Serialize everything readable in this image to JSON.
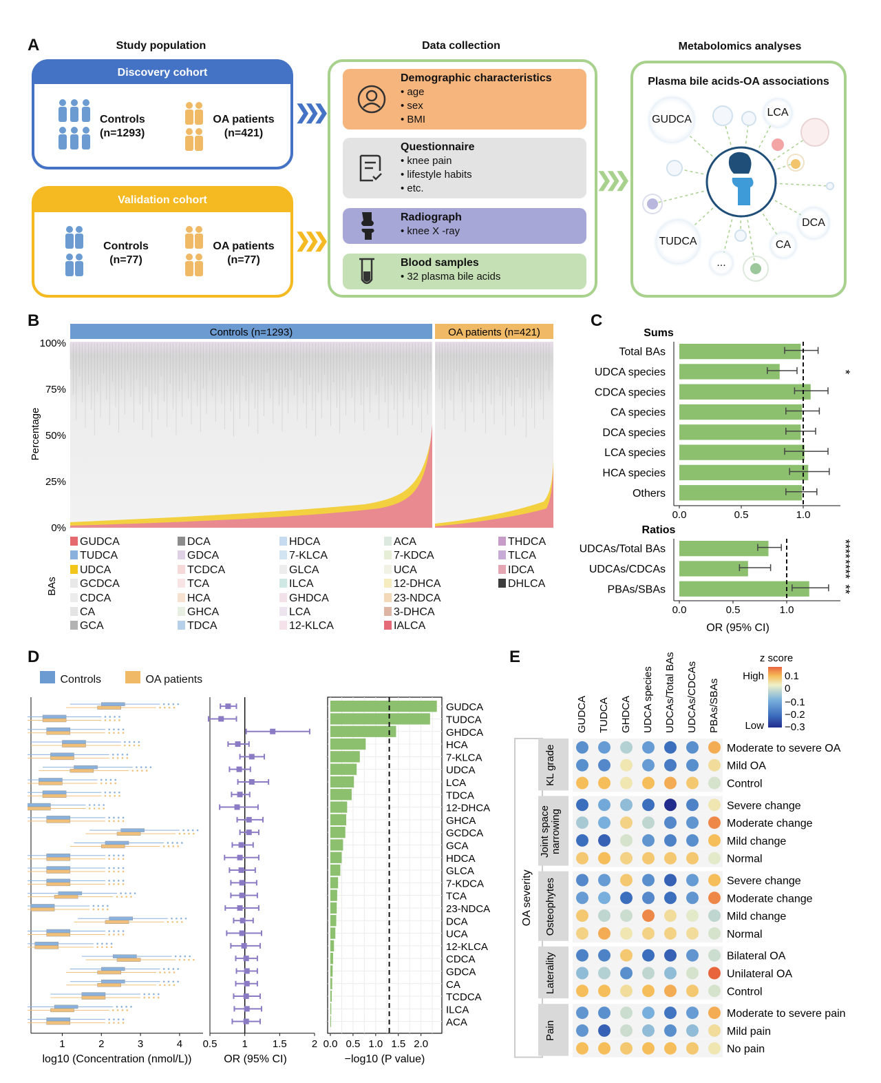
{
  "panel_letters": {
    "a": "A",
    "b": "B",
    "c": "C",
    "d": "D",
    "e": "E"
  },
  "panelA": {
    "headers": {
      "study": "Study population",
      "data": "Data collection",
      "metab": "Metabolomics analyses"
    },
    "discovery": {
      "title": "Discovery cohort",
      "controls": "Controls",
      "controls_n": "(n=1293)",
      "oa": "OA patients",
      "oa_n": "(n=421)",
      "color": "#4472c4"
    },
    "validation": {
      "title": "Validation cohort",
      "controls": "Controls",
      "controls_n": "(n=77)",
      "oa": "OA patients",
      "oa_n": "(n=77)",
      "color": "#f5b921"
    },
    "cards": [
      {
        "title": "Demographic characteristics",
        "items": [
          "age",
          "sex",
          "BMI"
        ],
        "color": "#f7b57e",
        "icon": "person-circle-icon"
      },
      {
        "title": "Questionnaire",
        "items": [
          "knee pain",
          "lifestyle habits",
          "etc."
        ],
        "color": "#e3e3e3",
        "icon": "clipboard-icon"
      },
      {
        "title": "Radiograph",
        "items": [
          "knee X -ray"
        ],
        "color": "#a6a7d6",
        "icon": "knee-joint-icon"
      },
      {
        "title": "Blood samples",
        "items": [
          "32 plasma bile acids"
        ],
        "color": "#c5e0b4",
        "icon": "test-tube-icon"
      }
    ],
    "metab_title": "Plasma bile  acids-OA associations",
    "bubbles": [
      "GUDCA",
      "LCA",
      "TUDCA",
      "DCA",
      "CA",
      "..."
    ]
  },
  "panelB": {
    "controls_label": "Controls (n=1293)",
    "oa_label": "OA patients (n=421)",
    "ylabel": "Percentage",
    "yticks": [
      "100%",
      "75%",
      "50%",
      "25%",
      "0%"
    ],
    "legend_title": "BAs",
    "legend": [
      [
        "GUDCA",
        "#e46a6f"
      ],
      [
        "TUDCA",
        "#8ab0dc"
      ],
      [
        "UDCA",
        "#f3c61c"
      ],
      [
        "GCDCA",
        "#e8e8e8"
      ],
      [
        "CDCA",
        "#ececec"
      ],
      [
        "CA",
        "#e4e4e4"
      ],
      [
        "GCA",
        "#b3b3b3"
      ],
      [
        "DCA",
        "#8c8c8c"
      ],
      [
        "GDCA",
        "#e0d0e6"
      ],
      [
        "TCDCA",
        "#f6dada"
      ],
      [
        "TCA",
        "#f8e4e4"
      ],
      [
        "HCA",
        "#f7e2d2"
      ],
      [
        "GHCA",
        "#e7efe2"
      ],
      [
        "TDCA",
        "#b6d0ea"
      ],
      [
        "HDCA",
        "#c6daf0"
      ],
      [
        "7-KLCA",
        "#d2e3f1"
      ],
      [
        "GLCA",
        "#ededed"
      ],
      [
        "ILCA",
        "#cfe8e4"
      ],
      [
        "GHDCA",
        "#f3e1ea"
      ],
      [
        "LCA",
        "#ece4ee"
      ],
      [
        "12-KLCA",
        "#f5e1ea"
      ],
      [
        "ACA",
        "#dce9de"
      ],
      [
        "7-KDCA",
        "#e6eed6"
      ],
      [
        "UCA",
        "#f2f2e4"
      ],
      [
        "12-DHCA",
        "#f5ecc0"
      ],
      [
        "23-NDCA",
        "#f4d9b8"
      ],
      [
        "3-DHCA",
        "#dcb5a5"
      ],
      [
        "IALCA",
        "#e46a78"
      ],
      [
        "THDCA",
        "#c89cc8"
      ],
      [
        "TLCA",
        "#c8aad6"
      ],
      [
        "IDCA",
        "#e3a6b2"
      ],
      [
        "DHLCA",
        "#3c3c3c"
      ]
    ]
  },
  "chart_data": [
    {
      "type": "bar",
      "id": "C-sums",
      "title": "Sums",
      "categories": [
        "Total BAs",
        "UDCA species",
        "CDCA species",
        "CA species",
        "DCA species",
        "LCA species",
        "HCA species",
        "Others"
      ],
      "values": [
        0.98,
        0.81,
        1.06,
        0.99,
        0.98,
        1.01,
        1.04,
        0.99
      ],
      "ci_low": [
        0.85,
        0.71,
        0.93,
        0.86,
        0.86,
        0.85,
        0.89,
        0.86
      ],
      "ci_high": [
        1.12,
        0.95,
        1.2,
        1.13,
        1.1,
        1.2,
        1.21,
        1.11
      ],
      "stars": [
        "",
        "*",
        "",
        "",
        "",
        "",
        "",
        ""
      ],
      "xticks": [
        0.0,
        0.5,
        1.0
      ],
      "xlim": [
        0,
        1.3
      ],
      "ref_line": 1.0
    },
    {
      "type": "bar",
      "id": "C-ratios",
      "title": "Ratios",
      "categories": [
        "UDCAs/Total BAs",
        "UDCAs/CDCAs",
        "PBAs/SBAs"
      ],
      "values": [
        0.83,
        0.64,
        1.21
      ],
      "ci_low": [
        0.73,
        0.56,
        1.05
      ],
      "ci_high": [
        0.95,
        0.85,
        1.39
      ],
      "stars": [
        "****",
        "****",
        "**"
      ],
      "xticks": [
        0.0,
        0.5,
        1.0
      ],
      "xlim": [
        0,
        1.5
      ],
      "ref_line": 1.0,
      "xlabel": "OR (95% CI)"
    },
    {
      "type": "bar",
      "id": "D-pvalue",
      "categories": [
        "GUDCA",
        "TUDCA",
        "GHDCA",
        "HCA",
        "7-KLCA",
        "UDCA",
        "LCA",
        "TDCA",
        "12-DHCA",
        "GHCA",
        "GCDCA",
        "GCA",
        "HDCA",
        "GLCA",
        "7-KDCA",
        "TCA",
        "23-NDCA",
        "DCA",
        "UCA",
        "12-KLCA",
        "CDCA",
        "GDCA",
        "CA",
        "TCDCA",
        "ILCA",
        "ACA"
      ],
      "values": [
        2.35,
        2.2,
        1.45,
        0.78,
        0.65,
        0.58,
        0.52,
        0.47,
        0.37,
        0.35,
        0.33,
        0.28,
        0.25,
        0.22,
        0.17,
        0.15,
        0.14,
        0.13,
        0.11,
        0.08,
        0.06,
        0.05,
        0.04,
        0.03,
        0.02,
        0.01
      ],
      "xticks": [
        0.0,
        0.5,
        1.0,
        1.5,
        2.0
      ],
      "xlim": [
        0,
        2.4
      ],
      "ref_line": 1.3,
      "xlabel": "−log10 (P value)"
    },
    {
      "type": "scatter",
      "id": "D-or",
      "categories": [
        "GUDCA",
        "TUDCA",
        "GHDCA",
        "HCA",
        "7-KLCA",
        "UDCA",
        "LCA",
        "TDCA",
        "12-DHCA",
        "GHCA",
        "GCDCA",
        "GCA",
        "HDCA",
        "GLCA",
        "7-KDCA",
        "TCA",
        "23-NDCA",
        "DCA",
        "UCA",
        "12-KLCA",
        "CDCA",
        "GDCA",
        "CA",
        "TCDCA",
        "ILCA",
        "ACA"
      ],
      "values": [
        0.76,
        0.66,
        1.4,
        0.9,
        1.1,
        0.92,
        1.1,
        0.93,
        0.89,
        1.06,
        1.06,
        0.95,
        0.93,
        0.95,
        0.96,
        0.96,
        0.93,
        0.97,
        0.96,
        0.99,
        1.02,
        1.03,
        1.03,
        1.02,
        1.03,
        1.02
      ],
      "ci_low": [
        0.65,
        0.48,
        1.02,
        0.76,
        0.93,
        0.78,
        0.9,
        0.81,
        0.64,
        0.89,
        0.93,
        0.82,
        0.71,
        0.78,
        0.8,
        0.8,
        0.72,
        0.84,
        0.74,
        0.8,
        0.87,
        0.88,
        0.87,
        0.84,
        0.85,
        0.82
      ],
      "ci_high": [
        0.88,
        0.88,
        1.93,
        1.06,
        1.28,
        1.08,
        1.34,
        1.07,
        1.19,
        1.26,
        1.2,
        1.12,
        1.2,
        1.15,
        1.17,
        1.18,
        1.2,
        1.12,
        1.24,
        1.22,
        1.18,
        1.18,
        1.18,
        1.22,
        1.24,
        1.22
      ],
      "xticks": [
        0.5,
        1,
        1.5,
        2
      ],
      "xlim": [
        0.5,
        2.0
      ],
      "ref_line": 1.0,
      "xlabel": "OR (95% CI)"
    },
    {
      "type": "boxplot",
      "id": "D-conc",
      "categories": [
        "GUDCA",
        "TUDCA",
        "GHDCA",
        "HCA",
        "7-KLCA",
        "UDCA",
        "LCA",
        "TDCA",
        "12-DHCA",
        "GHCA",
        "GCDCA",
        "GCA",
        "HDCA",
        "GLCA",
        "7-KDCA",
        "TCA",
        "23-NDCA",
        "DCA",
        "UCA",
        "12-KLCA",
        "CDCA",
        "GDCA",
        "CA",
        "TCDCA",
        "ILCA",
        "ACA"
      ],
      "controls_median": [
        2.3,
        0.8,
        0.9,
        1.3,
        1.0,
        1.6,
        0.7,
        0.8,
        0.4,
        0.9,
        2.8,
        2.4,
        0.9,
        0.9,
        0.9,
        1.2,
        0.5,
        2.5,
        0.9,
        0.6,
        2.6,
        2.3,
        2.3,
        1.8,
        1.1,
        0.9
      ],
      "oa_median": [
        2.2,
        0.8,
        0.9,
        1.3,
        1.0,
        1.5,
        0.7,
        0.8,
        0.4,
        0.9,
        2.7,
        2.3,
        0.9,
        0.9,
        0.9,
        1.1,
        0.5,
        2.4,
        0.9,
        0.6,
        2.7,
        2.2,
        2.2,
        1.8,
        1.0,
        0.9
      ],
      "xticks": [
        1,
        2,
        3,
        4
      ],
      "xlim": [
        0.2,
        4.6
      ],
      "xlabel": "log10 (Concentration (nmol/L))"
    },
    {
      "type": "heatmap",
      "id": "E",
      "columns": [
        "GUDCA",
        "TUDCA",
        "GHDCA",
        "UDCA species",
        "UDCAs/Total BAs",
        "UDCAs/CDCAs",
        "PBAs/SBAs"
      ],
      "groups": [
        {
          "name": "KL grade",
          "rows": [
            "Moderate to severe OA",
            "Mild OA",
            "Control"
          ]
        },
        {
          "name": "Joint space narrowing",
          "rows": [
            "Severe change",
            "Moderate change",
            "Mild change",
            "Normal"
          ]
        },
        {
          "name": "Osteophytes",
          "rows": [
            "Severe change",
            "Moderate change",
            "Mild change",
            "Normal"
          ]
        },
        {
          "name": "Laterality",
          "rows": [
            "Bilateral OA",
            "Unilateral OA",
            "Control"
          ]
        },
        {
          "name": "Pain",
          "rows": [
            "Moderate to severe pain",
            "Mild pain",
            "No pain"
          ]
        }
      ],
      "values": [
        [
          -0.15,
          -0.13,
          -0.05,
          -0.13,
          -0.2,
          -0.15,
          0.06
        ],
        [
          -0.15,
          -0.16,
          0.01,
          -0.13,
          -0.18,
          -0.15,
          0.02
        ],
        [
          0.05,
          0.05,
          0.01,
          0.05,
          0.06,
          0.04,
          -0.02
        ],
        [
          -0.2,
          -0.11,
          -0.08,
          -0.2,
          -0.3,
          -0.17,
          0.01
        ],
        [
          -0.06,
          -0.1,
          0.03,
          -0.04,
          -0.16,
          -0.14,
          0.08
        ],
        [
          -0.2,
          -0.22,
          -0.02,
          -0.14,
          -0.17,
          -0.15,
          0.05
        ],
        [
          0.04,
          0.05,
          0.03,
          0.04,
          0.04,
          0.04,
          -0.01
        ],
        [
          -0.16,
          -0.13,
          0.04,
          -0.15,
          -0.22,
          -0.13,
          0.05
        ],
        [
          -0.13,
          -0.1,
          -0.2,
          -0.16,
          -0.2,
          -0.14,
          0.08
        ],
        [
          0.04,
          -0.04,
          -0.03,
          0.08,
          0.02,
          -0.01,
          -0.04
        ],
        [
          0.03,
          0.06,
          0.01,
          0.03,
          0.03,
          0.02,
          -0.02
        ],
        [
          -0.17,
          -0.17,
          0.04,
          -0.2,
          -0.22,
          -0.14,
          -0.03
        ],
        [
          -0.08,
          -0.05,
          -0.15,
          -0.04,
          -0.08,
          -0.02,
          0.1
        ],
        [
          0.05,
          0.05,
          0.02,
          0.05,
          0.06,
          0.04,
          -0.02
        ],
        [
          -0.14,
          -0.15,
          -0.03,
          -0.1,
          -0.19,
          -0.13,
          0.06
        ],
        [
          -0.14,
          -0.22,
          -0.03,
          -0.08,
          -0.15,
          -0.08,
          0.02
        ],
        [
          0.05,
          0.05,
          0.04,
          0.05,
          0.05,
          0.04,
          0.01
        ]
      ],
      "legend": {
        "title": "z score",
        "high": "High",
        "low": "Low",
        "ticks": [
          "0.1",
          "0",
          "−0.1",
          "−0.2",
          "−0.3"
        ]
      },
      "side_label": "OA severity"
    }
  ],
  "panelD_legend": {
    "controls": "Controls",
    "oa": "OA patients",
    "controls_color": "#6b9bd1",
    "oa_color": "#f0b965"
  }
}
